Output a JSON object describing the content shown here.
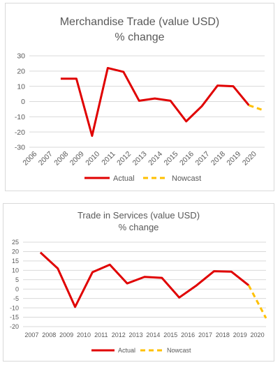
{
  "charts": [
    {
      "title_line1": "Merchandise Trade (value USD)",
      "title_line2": "% change",
      "chart_data": {
        "type": "line",
        "title": "Merchandise Trade (value USD) % change",
        "x": [
          "2006",
          "2007",
          "2008",
          "2009",
          "2010",
          "2011",
          "2012",
          "2013",
          "2014",
          "2015",
          "2016",
          "2017",
          "2018",
          "2019",
          "2020"
        ],
        "ylim": [
          -30,
          30
        ],
        "yticks": [
          -30,
          -20,
          -10,
          0,
          10,
          20,
          30
        ],
        "grid": true,
        "legend": "bottom",
        "series": [
          {
            "name": "Actual",
            "color": "#e00000",
            "dash": false,
            "values": [
              null,
              15,
              15,
              -22.5,
              22,
              19.5,
              0.5,
              2,
              0.5,
              -13,
              -3,
              10.5,
              10,
              -2.5,
              null
            ]
          },
          {
            "name": "Nowcast",
            "color": "#ffc000",
            "dash": true,
            "values": [
              null,
              null,
              null,
              null,
              null,
              null,
              null,
              null,
              null,
              null,
              null,
              null,
              null,
              -2.5,
              -6
            ]
          }
        ]
      }
    },
    {
      "title_line1": "Trade in Services (value USD)",
      "title_line2": "% change",
      "chart_data": {
        "type": "line",
        "title": "Trade in Services (value USD) % change",
        "x": [
          "2007",
          "2008",
          "2009",
          "2010",
          "2011",
          "2012",
          "2013",
          "2014",
          "2015",
          "2016",
          "2017",
          "2018",
          "2019",
          "2020"
        ],
        "ylim": [
          -20,
          25
        ],
        "yticks": [
          -20,
          -15,
          -10,
          -5,
          0,
          5,
          10,
          15,
          20,
          25
        ],
        "grid": true,
        "legend": "bottom",
        "series": [
          {
            "name": "Actual",
            "color": "#e00000",
            "dash": false,
            "values": [
              19.5,
              11,
              -9.5,
              9,
              13,
              3,
              6.5,
              6,
              -4.5,
              2,
              9.5,
              9.3,
              2,
              null
            ]
          },
          {
            "name": "Nowcast",
            "color": "#ffc000",
            "dash": true,
            "values": [
              null,
              null,
              null,
              null,
              null,
              null,
              null,
              null,
              null,
              null,
              null,
              null,
              2,
              -15.5
            ]
          }
        ]
      }
    }
  ]
}
